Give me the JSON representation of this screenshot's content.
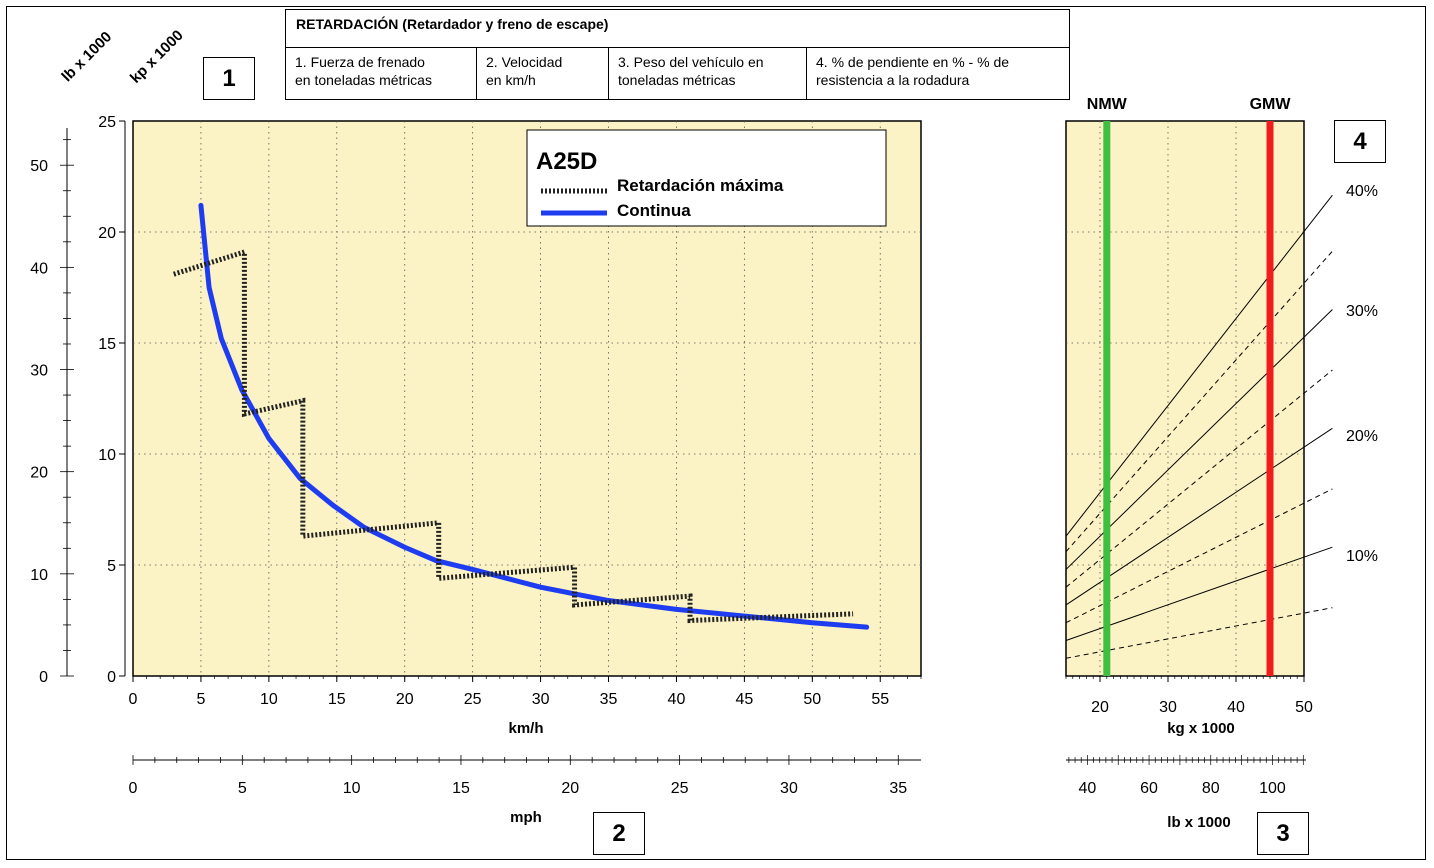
{
  "header": {
    "title": "RETARDACIÓN (Retardador y freno de escape)",
    "columns": [
      [
        "1. Fuerza de frenado",
        "en toneladas métricas"
      ],
      [
        "2. Velocidad",
        "en km/h"
      ],
      [
        "3. Peso del vehículo en",
        "toneladas métricas"
      ],
      [
        "4. % de pendiente en % - % de",
        "resistencia a la rodadura"
      ]
    ]
  },
  "boxes": [
    "1",
    "2",
    "3",
    "4"
  ],
  "colors": {
    "plot_bg": "#FBF2C5",
    "continuous": "#1E3CF0",
    "max_retard": "#222222",
    "nmw": "#3FBF3F",
    "gmw": "#F21C1C"
  },
  "chart_data": [
    {
      "type": "line",
      "title": "A25D",
      "legend": [
        "Retardación máxima",
        "Continua"
      ],
      "legend_position": "top-right",
      "grid": true,
      "xlabel": "km/h",
      "xlabel2": "mph",
      "ylabel_left": "lb x 1000",
      "ylabel_right": "kp x 1000",
      "xlim": [
        0,
        58
      ],
      "ylim": [
        0,
        25
      ],
      "x_ticks": [
        0,
        5,
        10,
        15,
        20,
        25,
        30,
        35,
        40,
        45,
        50,
        55
      ],
      "y_ticks": [
        0,
        5,
        10,
        15,
        20,
        25
      ],
      "mph_ticks": [
        0,
        5,
        10,
        15,
        20,
        25,
        30,
        35
      ],
      "lb_ticks": [
        0,
        10,
        20,
        30,
        40,
        50
      ],
      "series": [
        {
          "name": "Continua",
          "style": "solid",
          "points": [
            [
              5,
              21.2
            ],
            [
              5.6,
              17.5
            ],
            [
              6.5,
              15.2
            ],
            [
              8,
              12.9
            ],
            [
              10,
              10.7
            ],
            [
              12.3,
              8.9
            ],
            [
              14.7,
              7.7
            ],
            [
              17,
              6.7
            ],
            [
              20,
              5.8
            ],
            [
              22.3,
              5.2
            ],
            [
              25,
              4.8
            ],
            [
              30,
              4.0
            ],
            [
              35,
              3.4
            ],
            [
              40,
              3.0
            ],
            [
              45,
              2.7
            ],
            [
              50,
              2.4
            ],
            [
              54,
              2.2
            ]
          ]
        },
        {
          "name": "Retardación máxima",
          "style": "dashed",
          "points": [
            [
              3,
              18.1
            ],
            [
              8.2,
              19.1
            ],
            [
              8.2,
              11.8
            ],
            [
              12.5,
              12.4
            ],
            [
              12.5,
              6.3
            ],
            [
              22.5,
              6.9
            ],
            [
              22.5,
              4.4
            ],
            [
              32.5,
              4.9
            ],
            [
              32.5,
              3.2
            ],
            [
              41,
              3.6
            ],
            [
              41,
              2.5
            ],
            [
              53,
              2.8
            ]
          ]
        }
      ]
    },
    {
      "type": "line",
      "xlabel": "kg x 1000",
      "xlabel2": "lb x 1000",
      "xlim": [
        15,
        50
      ],
      "x_ticks": [
        20,
        30,
        40,
        50
      ],
      "lb_ticks": [
        40,
        60,
        80,
        100
      ],
      "markers": [
        {
          "label": "NMW",
          "x": 21
        },
        {
          "label": "GMW",
          "x": 45
        }
      ],
      "grade_labels": [
        "40%",
        "30%",
        "20%",
        "10%"
      ],
      "grade_lines": [
        {
          "grade": "5%",
          "style": "dashed",
          "y_at_15": 0.8,
          "y_at_50": 2.6
        },
        {
          "grade": "10%",
          "style": "solid",
          "y_at_15": 1.6,
          "y_at_50": 5.3
        },
        {
          "grade": "15%",
          "style": "dashed",
          "y_at_15": 2.4,
          "y_at_50": 7.9
        },
        {
          "grade": "20%",
          "style": "solid",
          "y_at_15": 3.2,
          "y_at_50": 10.6
        },
        {
          "grade": "25%",
          "style": "dashed",
          "y_at_15": 4.0,
          "y_at_50": 13.2
        },
        {
          "grade": "30%",
          "style": "solid",
          "y_at_15": 4.8,
          "y_at_50": 15.9
        },
        {
          "grade": "35%",
          "style": "dashed",
          "y_at_15": 5.6,
          "y_at_50": 18.5
        },
        {
          "grade": "40%",
          "style": "solid",
          "y_at_15": 6.3,
          "y_at_50": 21.0
        }
      ]
    }
  ]
}
